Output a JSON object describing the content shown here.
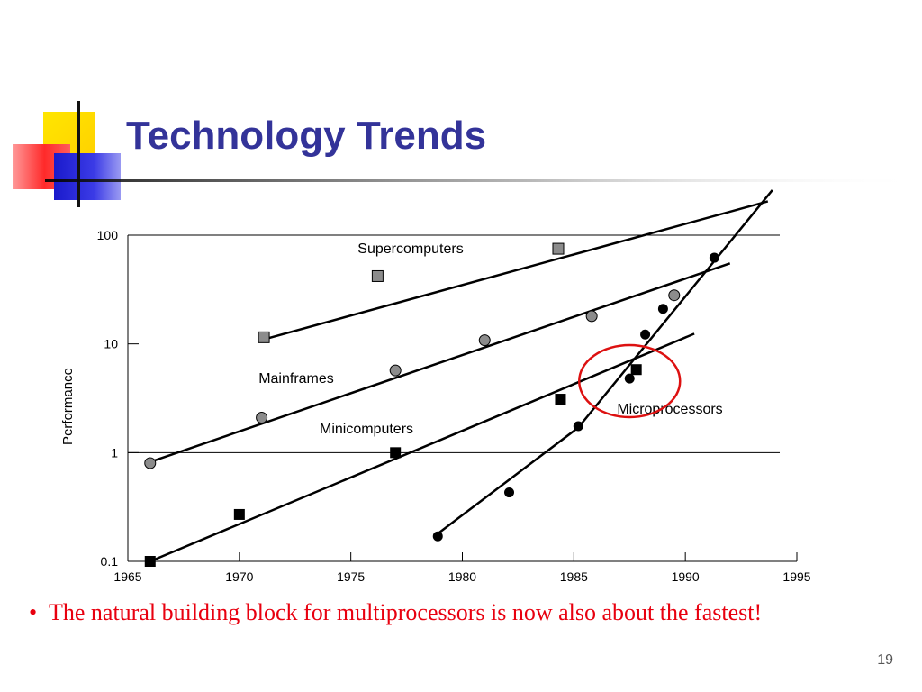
{
  "slide": {
    "title": "Technology Trends",
    "bullet_marker": "•",
    "bullet_text": "The natural building block for multiprocessors is now also about the fastest!",
    "page_number": "19"
  },
  "colors": {
    "title": "#333399",
    "bullet": "#e8000f",
    "highlight_circle": "#dd1111",
    "gray_marker": "#8c8c8c"
  },
  "chart_data": {
    "type": "scatter",
    "ylabel": "Performance",
    "xlabel": "",
    "y_scale": "log",
    "xlim": [
      1965,
      1995
    ],
    "ylim": [
      0.1,
      100
    ],
    "x_ticks": [
      "1965",
      "1970",
      "1975",
      "1980",
      "1985",
      "1990",
      "1995"
    ],
    "y_ticks": [
      {
        "value": 0.1,
        "label": "0.1"
      },
      {
        "value": 1,
        "label": "1"
      },
      {
        "value": 10,
        "label": "10"
      },
      {
        "value": 100,
        "label": "100"
      }
    ],
    "series": [
      {
        "name": "Supercomputers",
        "marker": "gray-square",
        "points": [
          [
            1971.1,
            11.5
          ],
          [
            1976.2,
            42
          ],
          [
            1984.3,
            75
          ]
        ],
        "trend": [
          [
            1971.3,
            11.3
          ],
          [
            1993.7,
            205
          ]
        ]
      },
      {
        "name": "Mainframes",
        "marker": "gray-circle",
        "points": [
          [
            1966.0,
            0.8
          ],
          [
            1971.0,
            2.1
          ],
          [
            1977.0,
            5.7
          ],
          [
            1981.0,
            10.8
          ],
          [
            1985.8,
            18
          ],
          [
            1989.5,
            28
          ]
        ],
        "trend": [
          [
            1966.0,
            0.82
          ],
          [
            1992.0,
            55
          ]
        ]
      },
      {
        "name": "Minicomputers",
        "marker": "black-square",
        "points": [
          [
            1966.0,
            0.1
          ],
          [
            1970.0,
            0.27
          ],
          [
            1977.0,
            1.0
          ],
          [
            1984.4,
            3.1
          ],
          [
            1987.8,
            5.8
          ]
        ],
        "trend": [
          [
            1966.0,
            0.1
          ],
          [
            1990.4,
            12.4
          ]
        ]
      },
      {
        "name": "Microprocessors",
        "marker": "black-circle",
        "points": [
          [
            1978.9,
            0.17
          ],
          [
            1982.1,
            0.43
          ],
          [
            1985.2,
            1.75
          ],
          [
            1987.5,
            4.8
          ],
          [
            1988.2,
            12.2
          ],
          [
            1989.0,
            21
          ],
          [
            1991.3,
            62
          ]
        ],
        "trend": [
          [
            1978.9,
            0.18
          ],
          [
            1985.2,
            1.7
          ],
          [
            1993.9,
            260
          ]
        ]
      }
    ],
    "annotations": [
      {
        "type": "circle",
        "x": 1987.5,
        "y": 4.5,
        "note": "red ellipse around microprocessor/minicomputer crossover"
      }
    ],
    "grid": "horizontal lines at 1 and 100 only",
    "legend": "none"
  }
}
